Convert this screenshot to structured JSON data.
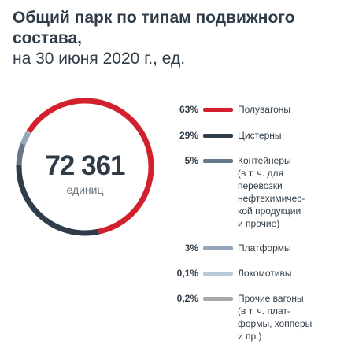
{
  "header": {
    "title": "Общий парк по типам подвижного состава,",
    "subtitle": "на 30 июня 2020 г., ед."
  },
  "center": {
    "value": "72 361",
    "unit": "единиц"
  },
  "legend": [
    {
      "pct": "63%",
      "label": "Полувагоны",
      "color": "#d3202f"
    },
    {
      "pct": "29%",
      "label": "Цистерны",
      "color": "#2f3c4a"
    },
    {
      "pct": "5%",
      "label": "Контейнеры\n(в т. ч. для\nперевозки\nнефтехимичес-\nкой продукции\nи прочие)",
      "color": "#667788"
    },
    {
      "pct": "3%",
      "label": "Платформы",
      "color": "#93a7b8"
    },
    {
      "pct": "0,1%",
      "label": "Локомотивы",
      "color": "#b9cbd8"
    },
    {
      "pct": "0,2%",
      "label": "Прочие вагоны\n(в т. ч. плат-\nформы, хопперы\nи пр.)",
      "color": "#a8a8a8"
    }
  ],
  "chart_data": {
    "type": "pie",
    "title": "Общий парк по типам подвижного состава, на 30 июня 2020 г., ед.",
    "total": 72361,
    "categories": [
      "Полувагоны",
      "Цистерны",
      "Контейнеры (в т. ч. для перевозки нефтехимической продукции и прочие)",
      "Платформы",
      "Локомотивы",
      "Прочие вагоны (в т. ч. платформы, хопперы и пр.)"
    ],
    "values": [
      63,
      29,
      5,
      3,
      0.1,
      0.2
    ],
    "colors": [
      "#d3202f",
      "#2f3c4a",
      "#667788",
      "#93a7b8",
      "#b9cbd8",
      "#a8a8a8"
    ],
    "style": "donut",
    "legend_position": "right"
  }
}
